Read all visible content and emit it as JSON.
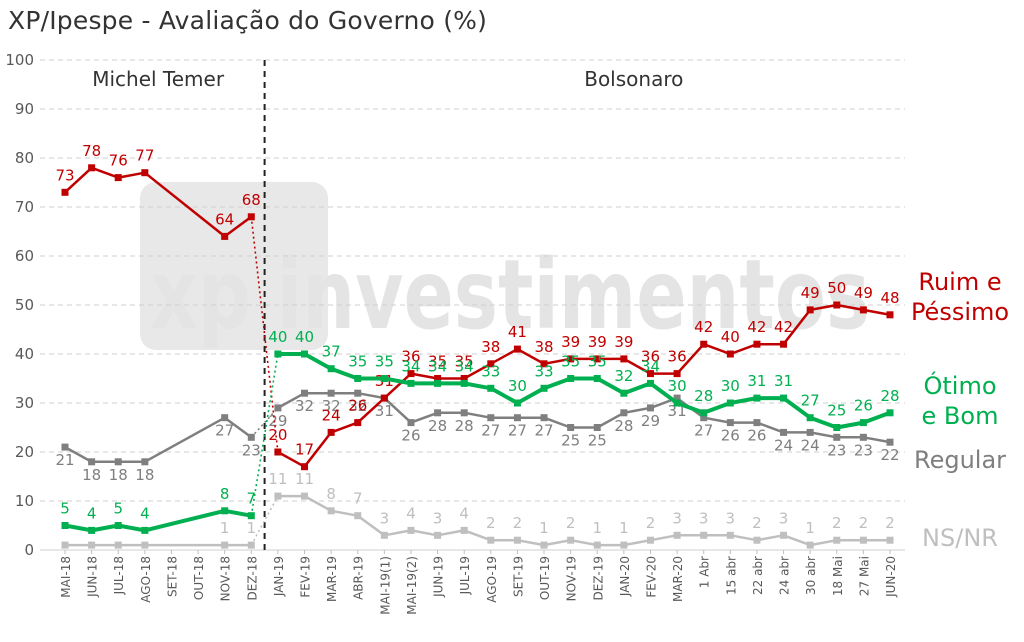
{
  "chart_data": {
    "type": "line",
    "title": "XP/Ipespe - Avaliação do Governo (%)",
    "watermark": "xp investimentos",
    "ylim": [
      0,
      100
    ],
    "yticks": [
      0,
      10,
      20,
      30,
      40,
      50,
      60,
      70,
      80,
      90,
      100
    ],
    "grid": true,
    "periods": [
      {
        "label": "Michel Temer",
        "start": 0,
        "end": 7
      },
      {
        "label": "Bolsonaro",
        "start": 8,
        "end": 37
      }
    ],
    "categories": [
      "MAI-18",
      "JUN-18",
      "JUL-18",
      "AGO-18",
      "SET-18",
      "OUT-18",
      "NOV-18",
      "DEZ-18",
      "JAN-19",
      "FEV-19",
      "MAR-19",
      "ABR-19",
      "MAI-19(1)",
      "MAI-19(2)",
      "JUN-19",
      "JUL-19",
      "AGO-19",
      "SET-19",
      "OUT-19",
      "NOV-19",
      "DEZ-19",
      "JAN-20",
      "FEV-20",
      "MAR-20",
      "1 Abr",
      "15 abr",
      "22 abr",
      "24 abr",
      "30 abr",
      "18 Mai",
      "27 Mai",
      "JUN-20"
    ],
    "series": [
      {
        "name": "Ruim e Péssimo",
        "name_lines": [
          "Ruim e",
          "Péssimo"
        ],
        "color": "#c00000",
        "values": [
          73,
          78,
          76,
          77,
          null,
          null,
          64,
          68,
          20,
          17,
          24,
          26,
          31,
          36,
          35,
          35,
          38,
          41,
          38,
          39,
          39,
          39,
          36,
          36,
          42,
          40,
          42,
          42,
          49,
          50,
          49,
          48
        ],
        "labels": [
          "73",
          "78",
          "76",
          "77",
          null,
          null,
          "64",
          "68",
          "20",
          "17",
          "24",
          "26",
          "31",
          "36",
          "35",
          "35",
          "38",
          "41",
          "38",
          "39",
          "39",
          "39",
          "36",
          "36",
          "42",
          "40",
          "42",
          "42",
          "49",
          "50",
          "49",
          "48"
        ]
      },
      {
        "name": "Ótimo e Bom",
        "name_lines": [
          "Ótimo",
          "e Bom"
        ],
        "color": "#00b050",
        "values": [
          5,
          4,
          5,
          4,
          null,
          null,
          8,
          7,
          40,
          40,
          37,
          35,
          35,
          34,
          34,
          34,
          33,
          30,
          33,
          35,
          35,
          32,
          34,
          30,
          28,
          30,
          31,
          31,
          27,
          25,
          26,
          28
        ],
        "labels": [
          "5",
          "4",
          "5",
          "4",
          null,
          null,
          "8",
          "7",
          "40",
          "40",
          "37",
          "35",
          "35",
          "34",
          "34",
          "34",
          "33",
          "30",
          "33",
          "35",
          "35",
          "32",
          "34",
          "30",
          "28",
          "30",
          "31",
          "31",
          "27",
          "25",
          "26",
          "28"
        ]
      },
      {
        "name": "Regular",
        "name_lines": [
          "Regular"
        ],
        "color": "#7f7f7f",
        "values": [
          21,
          18,
          18,
          18,
          null,
          null,
          27,
          23,
          29,
          32,
          32,
          32,
          31,
          26,
          28,
          28,
          27,
          27,
          27,
          25,
          25,
          28,
          29,
          31,
          27,
          26,
          26,
          24,
          24,
          23,
          23,
          22
        ],
        "labels": [
          "21",
          "18",
          "18",
          "18",
          null,
          null,
          "27",
          "23",
          "29",
          "32",
          "32",
          "32",
          "31",
          "26",
          "28",
          "28",
          "27",
          "27",
          "27",
          "25",
          "25",
          "28",
          "29",
          "31",
          "27",
          "26",
          "26",
          "24",
          "24",
          "23",
          "23",
          "22"
        ]
      },
      {
        "name": "NS/NR",
        "name_lines": [
          "NS/NR"
        ],
        "color": "#bfbfbf",
        "values": [
          1,
          1,
          1,
          1,
          null,
          null,
          1,
          1,
          11,
          11,
          8,
          7,
          3,
          4,
          3,
          4,
          2,
          2,
          1,
          2,
          1,
          1,
          2,
          3,
          3,
          3,
          2,
          3,
          1,
          2,
          2,
          2
        ],
        "labels": [
          null,
          null,
          null,
          null,
          null,
          null,
          "1",
          "1",
          "11",
          "11",
          "8",
          "7",
          "3",
          "4",
          "3",
          "4",
          "2",
          "2",
          "1",
          "2",
          "1",
          "1",
          "2",
          "3",
          "3",
          "3",
          "2",
          "3",
          "1",
          "2",
          "2",
          "2"
        ]
      }
    ]
  }
}
